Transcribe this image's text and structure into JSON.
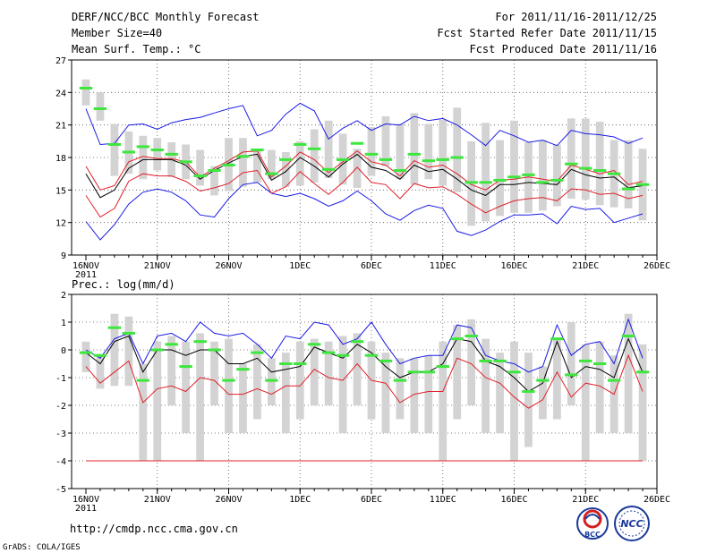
{
  "header": {
    "title": "DERF/NCC/BCC Monthly Forecast",
    "member_size": "Member Size=40",
    "variable": "Mean Surf. Temp.: °C",
    "period": "For 2011/11/16-2011/12/25",
    "started": "Fcst Started Refer Date 2011/11/15",
    "produced": "Fcst Produced Date 2011/11/16"
  },
  "footer": {
    "url": "http://cmdp.ncc.cma.gov.cn",
    "credit": "GrADS: COLA/IGES",
    "logo_bcc": "BCC",
    "logo_ncc": "NCC"
  },
  "colors": {
    "box": "#d3d3d3",
    "mean": "#000000",
    "lower": "#e0202a",
    "envelope": "#1a1ae6",
    "median": "#3ee63e",
    "frame": "#000000",
    "grid": "#555555"
  },
  "chart_data": [
    {
      "type": "box-line",
      "title": "Mean Surf. Temp.: °C",
      "ylabel": "°C",
      "xlabel": "",
      "x": [
        0,
        1,
        2,
        3,
        4,
        5,
        6,
        7,
        8,
        9,
        10,
        11,
        12,
        13,
        14,
        15,
        16,
        17,
        18,
        19,
        20,
        21,
        22,
        23,
        24,
        25,
        26,
        27,
        28,
        29,
        30,
        31,
        32,
        33,
        34,
        35,
        36,
        37,
        38,
        39
      ],
      "x_tick_labels": [
        "16NOV",
        "21NOV",
        "26NOV",
        "1DEC",
        "6DEC",
        "11DEC",
        "16DEC",
        "21DEC",
        "26DEC"
      ],
      "x_tick_positions": [
        0,
        5,
        10,
        15,
        20,
        25,
        30,
        35,
        40
      ],
      "year_label": "2011",
      "ylim": [
        9,
        27
      ],
      "yticks": [
        9,
        12,
        15,
        18,
        21,
        24,
        27
      ],
      "grid": true,
      "series": [
        {
          "name": "box_top",
          "values": [
            25.2,
            24.0,
            21.1,
            20.4,
            20.0,
            19.8,
            19.4,
            19.2,
            18.7,
            17.2,
            19.8,
            19.8,
            18.8,
            18.7,
            18.5,
            19.5,
            20.6,
            21.4,
            20.2,
            18.8,
            20.8,
            21.8,
            21.1,
            22.1,
            21.1,
            21.5,
            22.6,
            19.5,
            21.2,
            19.6,
            21.4,
            19.4,
            19.6,
            19.2,
            21.6,
            21.6,
            21.3,
            19.6,
            19.6,
            18.8
          ]
        },
        {
          "name": "box_bottom",
          "values": [
            22.8,
            21.4,
            16.3,
            16.5,
            16.0,
            16.8,
            16.2,
            16.0,
            15.4,
            14.5,
            14.9,
            15.3,
            15.7,
            16.0,
            15.3,
            15.4,
            15.7,
            16.1,
            15.5,
            15.2,
            16.3,
            17.2,
            16.0,
            15.5,
            16.0,
            15.4,
            14.8,
            11.7,
            12.1,
            12.6,
            12.9,
            12.9,
            13.1,
            13.5,
            14.2,
            14.1,
            13.6,
            13.4,
            13.3,
            12.2
          ]
        },
        {
          "name": "median",
          "values": [
            24.4,
            22.5,
            19.2,
            18.5,
            19.0,
            18.7,
            18.3,
            17.6,
            16.3,
            16.8,
            17.3,
            18.1,
            18.7,
            16.5,
            17.8,
            19.2,
            18.8,
            16.9,
            17.8,
            19.3,
            18.3,
            17.8,
            16.8,
            18.3,
            17.7,
            17.8,
            18.0,
            15.7,
            15.7,
            15.9,
            16.2,
            16.4,
            15.7,
            15.9,
            17.4,
            17.0,
            16.8,
            16.5,
            15.1,
            15.5
          ]
        },
        {
          "name": "ensemble_mean",
          "values": [
            16.5,
            14.3,
            15.0,
            17.0,
            17.8,
            17.8,
            17.8,
            17.3,
            16.0,
            16.8,
            17.5,
            18.1,
            18.3,
            15.9,
            16.7,
            18.0,
            17.2,
            16.2,
            17.4,
            18.3,
            17.1,
            16.8,
            16.0,
            17.3,
            16.7,
            16.9,
            16.0,
            15.0,
            14.5,
            15.5,
            15.5,
            15.7,
            15.6,
            15.5,
            16.9,
            16.4,
            16.1,
            16.2,
            15.2,
            15.4
          ]
        },
        {
          "name": "mean_plus_sd",
          "values": [
            17.2,
            15.0,
            15.4,
            17.6,
            18.1,
            17.9,
            17.9,
            17.6,
            16.2,
            17.0,
            17.7,
            18.5,
            18.6,
            16.2,
            17.2,
            18.5,
            17.8,
            16.6,
            17.6,
            18.6,
            17.6,
            17.3,
            16.3,
            17.7,
            17.1,
            17.3,
            16.5,
            15.5,
            15.0,
            15.9,
            16.0,
            16.2,
            16.0,
            15.8,
            17.3,
            16.9,
            16.5,
            16.8,
            15.5,
            15.8
          ]
        },
        {
          "name": "mean_minus_sd",
          "values": [
            14.5,
            12.5,
            13.3,
            15.8,
            16.5,
            16.3,
            16.3,
            15.8,
            14.9,
            15.2,
            15.6,
            16.6,
            16.8,
            14.7,
            15.3,
            16.7,
            15.6,
            14.6,
            15.7,
            17.1,
            15.7,
            15.5,
            14.2,
            15.6,
            15.2,
            15.3,
            14.6,
            13.7,
            12.9,
            13.5,
            14.0,
            14.2,
            14.3,
            14.0,
            15.1,
            15.0,
            14.6,
            14.7,
            14.2,
            14.5
          ]
        },
        {
          "name": "ensemble_max",
          "values": [
            22.5,
            19.2,
            19.3,
            21.0,
            21.1,
            20.6,
            21.2,
            21.5,
            21.7,
            22.1,
            22.5,
            22.8,
            20.0,
            20.5,
            22.0,
            23.0,
            22.3,
            19.7,
            20.7,
            21.4,
            20.5,
            21.1,
            21.0,
            21.8,
            21.4,
            21.6,
            21.0,
            20.1,
            19.1,
            20.5,
            20.0,
            19.4,
            19.6,
            19.1,
            20.5,
            20.2,
            20.1,
            19.9,
            19.3,
            19.8
          ]
        },
        {
          "name": "ensemble_min",
          "values": [
            12.1,
            10.4,
            11.8,
            13.7,
            14.8,
            15.1,
            14.8,
            14.0,
            12.7,
            12.5,
            14.2,
            15.5,
            15.7,
            14.7,
            14.4,
            14.7,
            14.2,
            13.5,
            14.0,
            14.9,
            14.0,
            12.8,
            12.2,
            13.1,
            13.6,
            13.3,
            11.2,
            10.8,
            11.3,
            12.1,
            12.7,
            12.7,
            12.8,
            11.9,
            13.5,
            13.2,
            13.3,
            12.0,
            12.4,
            12.8
          ]
        }
      ]
    },
    {
      "type": "box-line",
      "title": "Prec.: log(mm/d)",
      "ylabel": "log(mm/d)",
      "xlabel": "",
      "x": [
        0,
        1,
        2,
        3,
        4,
        5,
        6,
        7,
        8,
        9,
        10,
        11,
        12,
        13,
        14,
        15,
        16,
        17,
        18,
        19,
        20,
        21,
        22,
        23,
        24,
        25,
        26,
        27,
        28,
        29,
        30,
        31,
        32,
        33,
        34,
        35,
        36,
        37,
        38,
        39
      ],
      "x_tick_labels": [
        "16NOV",
        "21NOV",
        "26NOV",
        "1DEC",
        "6DEC",
        "11DEC",
        "16DEC",
        "21DEC",
        "26DEC"
      ],
      "x_tick_positions": [
        0,
        5,
        10,
        15,
        20,
        25,
        30,
        35,
        40
      ],
      "year_label": "2011",
      "ylim": [
        -5,
        2
      ],
      "yticks": [
        -5,
        -4,
        -3,
        -2,
        -1,
        0,
        1,
        2
      ],
      "grid": true,
      "series": [
        {
          "name": "box_top",
          "values": [
            0.3,
            -0.2,
            1.3,
            1.2,
            -0.5,
            0.3,
            0.5,
            0.3,
            0.6,
            0.3,
            0.4,
            -0.5,
            0.2,
            -0.3,
            -0.1,
            0.3,
            0.4,
            0.3,
            0.5,
            0.6,
            0.3,
            -0.1,
            -0.3,
            -0.3,
            -0.2,
            0.3,
            0.9,
            1.1,
            0.4,
            -0.1,
            0.3,
            -0.1,
            -0.6,
            0.4,
            1.0,
            0.2,
            0.3,
            -0.2,
            1.3,
            0.2
          ]
        },
        {
          "name": "box_bottom",
          "values": [
            -0.8,
            -1.4,
            -1.3,
            -1.3,
            -4.0,
            -4.0,
            -2.0,
            -3.0,
            -4.0,
            -2.0,
            -3.0,
            -3.0,
            -2.5,
            -2.0,
            -3.0,
            -2.5,
            -2.0,
            -2.0,
            -3.0,
            -2.0,
            -2.5,
            -3.0,
            -2.5,
            -3.0,
            -3.0,
            -4.0,
            -2.5,
            -2.0,
            -3.0,
            -3.0,
            -4.0,
            -3.5,
            -2.5,
            -2.5,
            -2.0,
            -4.0,
            -3.0,
            -3.0,
            -3.0,
            -4.0
          ]
        },
        {
          "name": "median",
          "values": [
            -0.1,
            -0.2,
            0.8,
            0.6,
            -1.1,
            0.0,
            0.2,
            -0.6,
            0.3,
            0.0,
            -1.1,
            -0.7,
            -0.1,
            -1.1,
            -0.5,
            -0.5,
            0.2,
            -0.1,
            -0.2,
            0.3,
            -0.2,
            -0.4,
            -1.1,
            -0.8,
            -0.8,
            -0.6,
            0.4,
            0.5,
            -0.4,
            -0.4,
            -0.8,
            -1.5,
            -1.1,
            0.4,
            -0.9,
            -0.4,
            -0.5,
            -1.1,
            0.5,
            -0.8
          ]
        },
        {
          "name": "ensemble_mean",
          "values": [
            -0.1,
            -0.5,
            0.3,
            0.5,
            -0.8,
            0.0,
            0.0,
            -0.2,
            0.0,
            0.0,
            -0.5,
            -0.5,
            -0.3,
            -0.8,
            -0.7,
            -0.6,
            0.1,
            -0.1,
            -0.3,
            0.2,
            -0.1,
            -0.6,
            -1.0,
            -0.8,
            -0.8,
            -0.5,
            0.4,
            0.3,
            -0.4,
            -0.6,
            -1.0,
            -1.5,
            -1.2,
            0.3,
            -1.0,
            -0.6,
            -0.7,
            -1.0,
            0.4,
            -0.8
          ]
        },
        {
          "name": "mean_minus_sd",
          "values": [
            -0.6,
            -1.2,
            -0.8,
            -0.4,
            -1.9,
            -1.4,
            -1.3,
            -1.5,
            -1.0,
            -1.1,
            -1.6,
            -1.6,
            -1.4,
            -1.6,
            -1.3,
            -1.3,
            -0.7,
            -1.0,
            -1.1,
            -0.5,
            -1.1,
            -1.2,
            -1.9,
            -1.6,
            -1.5,
            -1.5,
            -0.3,
            -0.5,
            -1.0,
            -1.2,
            -1.7,
            -2.1,
            -1.8,
            -0.8,
            -1.7,
            -1.2,
            -1.3,
            -1.6,
            -0.2,
            -1.5
          ]
        },
        {
          "name": "ensemble_max",
          "values": [
            0.0,
            -0.3,
            0.4,
            0.6,
            -0.5,
            0.5,
            0.6,
            0.3,
            1.0,
            0.6,
            0.5,
            0.6,
            0.2,
            -0.3,
            0.5,
            0.4,
            1.0,
            0.9,
            0.2,
            0.4,
            1.0,
            0.2,
            -0.5,
            -0.3,
            -0.2,
            -0.2,
            0.9,
            0.8,
            -0.2,
            -0.4,
            -0.5,
            -0.8,
            -0.6,
            0.9,
            -0.2,
            0.2,
            0.3,
            -0.5,
            1.1,
            -0.3
          ]
        },
        {
          "name": "floor",
          "values": [
            -4.0,
            -4.0,
            -4.0,
            -4.0,
            -4.0,
            -4.0,
            -4.0,
            -4.0,
            -4.0,
            -4.0,
            -4.0,
            -4.0,
            -4.0,
            -4.0,
            -4.0,
            -4.0,
            -4.0,
            -4.0,
            -4.0,
            -4.0,
            -4.0,
            -4.0,
            -4.0,
            -4.0,
            -4.0,
            -4.0,
            -4.0,
            -4.0,
            -4.0,
            -4.0,
            -4.0,
            -4.0,
            -4.0,
            -4.0,
            -4.0,
            -4.0,
            -4.0,
            -4.0,
            -4.0,
            -4.0
          ]
        }
      ]
    }
  ]
}
